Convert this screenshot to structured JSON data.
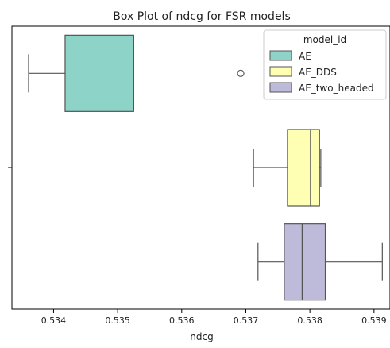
{
  "chart_data": {
    "type": "boxplot",
    "title": "Box Plot of ndcg for FSR models",
    "xlabel": "ndcg",
    "ylabel": "",
    "xlim": [
      0.53335,
      0.53925
    ],
    "xticks": [
      0.534,
      0.535,
      0.536,
      0.537,
      0.538,
      0.539
    ],
    "xtick_labels": [
      "0.534",
      "0.535",
      "0.536",
      "0.537",
      "0.538",
      "0.539"
    ],
    "grid": false,
    "legend": {
      "title": "model_id",
      "position": "top-right"
    },
    "series": [
      {
        "name": "AE",
        "color": "#8dd3c7",
        "whisker_low": 0.53361,
        "q1": 0.53418,
        "median": 0.53525,
        "q3": 0.53525,
        "whisker_high": 0.53525,
        "outliers": [
          0.53692
        ]
      },
      {
        "name": "AE_DDS",
        "color": "#ffffb3",
        "whisker_low": 0.53712,
        "q1": 0.53765,
        "median": 0.53801,
        "q3": 0.53815,
        "whisker_high": 0.53817,
        "outliers": []
      },
      {
        "name": "AE_two_headed",
        "color": "#bebada",
        "whisker_low": 0.53719,
        "q1": 0.5376,
        "median": 0.53788,
        "q3": 0.53824,
        "whisker_high": 0.53913,
        "outliers": []
      }
    ]
  }
}
